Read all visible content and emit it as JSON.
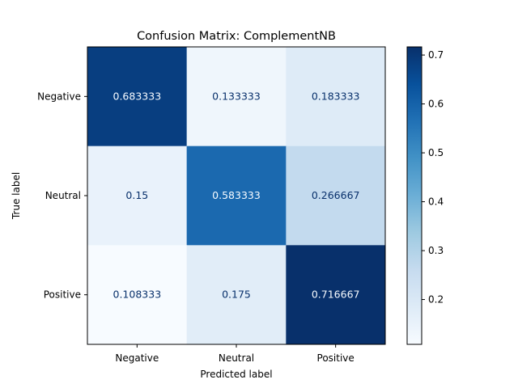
{
  "chart_data": {
    "type": "heatmap",
    "title": "Confusion Matrix: ComplementNB",
    "xlabel": "Predicted label",
    "ylabel": "True label",
    "x_categories": [
      "Negative",
      "Neutral",
      "Positive"
    ],
    "y_categories": [
      "Negative",
      "Neutral",
      "Positive"
    ],
    "values": [
      [
        0.683333,
        0.133333,
        0.183333
      ],
      [
        0.15,
        0.583333,
        0.266667
      ],
      [
        0.108333,
        0.175,
        0.716667
      ]
    ],
    "value_labels": [
      [
        "0.683333",
        "0.133333",
        "0.183333"
      ],
      [
        "0.15",
        "0.583333",
        "0.266667"
      ],
      [
        "0.108333",
        "0.175",
        "0.716667"
      ]
    ],
    "colormap": "Blues",
    "colorbar": {
      "range": [
        0.108333,
        0.716667
      ],
      "ticks": [
        0.2,
        0.3,
        0.4,
        0.5,
        0.6,
        0.7
      ],
      "tick_labels": [
        "0.2",
        "0.3",
        "0.4",
        "0.5",
        "0.6",
        "0.7"
      ]
    },
    "colors": {
      "low": "#f7fbff",
      "high": "#08306b",
      "text_light": "#f7fbff",
      "text_dark": "#08306b"
    }
  }
}
